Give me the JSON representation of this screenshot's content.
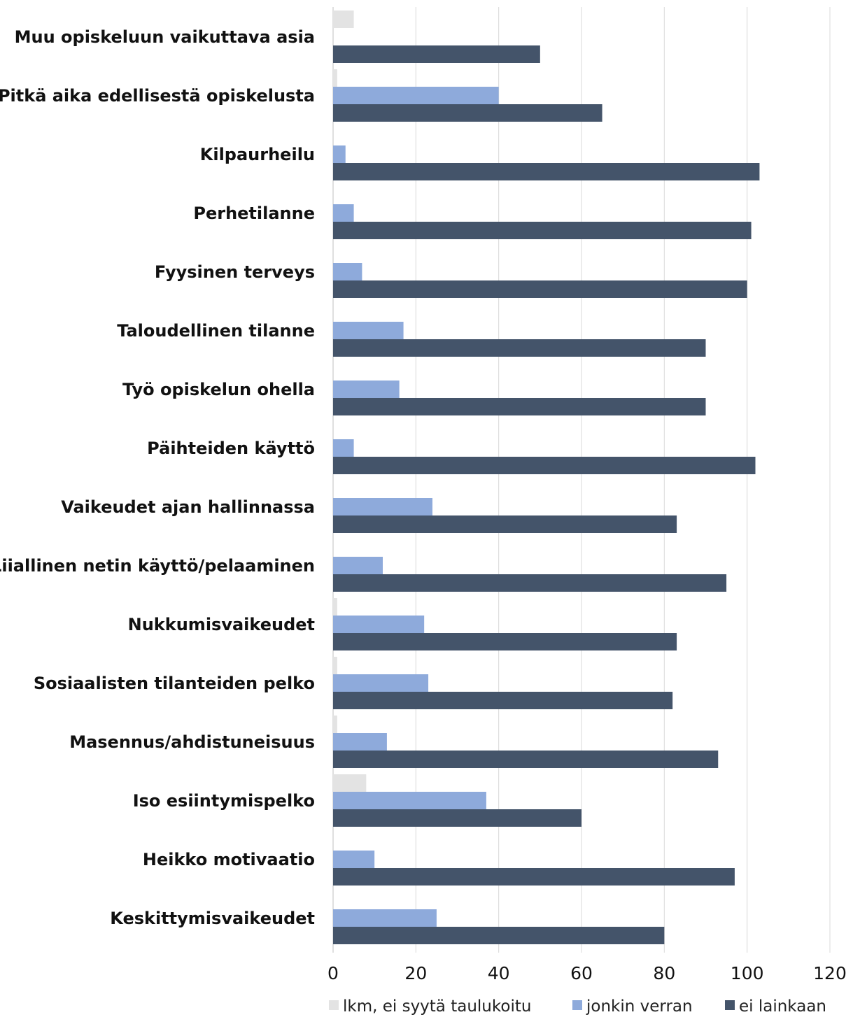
{
  "chart_data": {
    "type": "bar",
    "orientation": "horizontal",
    "categories": [
      "Muu opiskeluun vaikuttava asia",
      "Pitkä aika edellisestä opiskelusta",
      "Kilpaurheilu",
      "Perhetilanne",
      "Fyysinen terveys",
      "Taloudellinen tilanne",
      "Työ opiskelun ohella",
      "Päihteiden käyttö",
      "Vaikeudet ajan hallinnassa",
      "Liiallinen netin käyttö/pelaaminen",
      "Nukkumisvaikeudet",
      "Sosiaalisten tilanteiden pelko",
      "Masennus/ahdistuneisuus",
      "Iso esiintymispelko",
      "Heikko motivaatio",
      "Keskittymisvaikeudet"
    ],
    "series": [
      {
        "name": "lkm, ei syytä taulukoitu",
        "color": "#e3e3e3",
        "values": [
          5,
          1,
          0,
          0,
          0,
          0,
          0,
          0,
          0,
          0,
          1,
          1,
          1,
          8,
          0,
          0
        ]
      },
      {
        "name": "jonkin verran",
        "color": "#8eaadb",
        "values": [
          0,
          40,
          3,
          5,
          7,
          17,
          16,
          5,
          24,
          12,
          22,
          23,
          13,
          37,
          10,
          25
        ]
      },
      {
        "name": "ei lainkaan",
        "color": "#44546a",
        "values": [
          50,
          65,
          103,
          101,
          100,
          90,
          90,
          102,
          83,
          95,
          83,
          82,
          93,
          60,
          97,
          80
        ]
      }
    ],
    "xlim": [
      0,
      120
    ],
    "xticks": [
      "0",
      "20",
      "40",
      "60",
      "80",
      "100",
      "120"
    ],
    "grid": true,
    "legend_position": "bottom"
  }
}
